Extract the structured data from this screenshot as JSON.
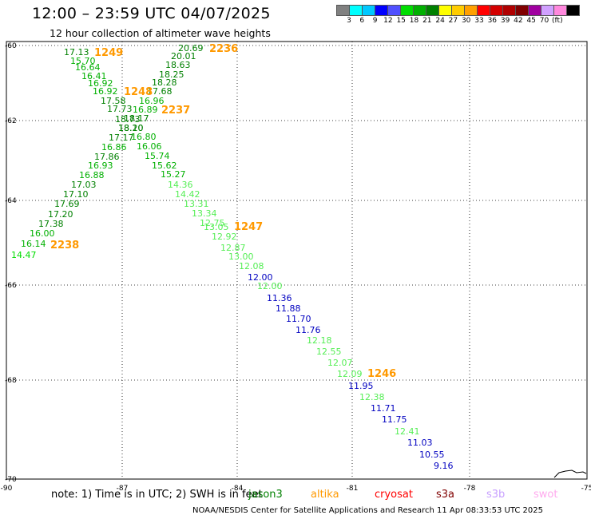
{
  "title": "12:00 – 23:59 UTC 04/07/2025",
  "subtitle": "12 hour collection of altimeter wave heights",
  "colorbar": {
    "colors": [
      "#808080",
      "#00ffff",
      "#00c8ff",
      "#0000ff",
      "#5050ff",
      "#00dd00",
      "#00b000",
      "#008000",
      "#ffff00",
      "#ffcc00",
      "#ffa000",
      "#ff0000",
      "#d40000",
      "#b00000",
      "#800000",
      "#a000a0",
      "#d0a0ff",
      "#ff88dd",
      "#000000"
    ],
    "labels": [
      "3",
      "6",
      "9",
      "12",
      "15",
      "18",
      "21",
      "24",
      "27",
      "30",
      "33",
      "36",
      "39",
      "42",
      "45",
      "70",
      "(ft)"
    ],
    "unit": "(ft)"
  },
  "axes": {
    "lon_labels": [
      "-90",
      "-87",
      "-84",
      "-81",
      "-78",
      "-75"
    ],
    "lat_labels": [
      "-60",
      "-62",
      "-64",
      "-66",
      "-68",
      "-70"
    ]
  },
  "wave_heights": [
    {
      "v": "17.13",
      "c": "#008000"
    },
    {
      "v": "15.70",
      "c": "#00b000"
    },
    {
      "v": "16.64",
      "c": "#00b000"
    },
    {
      "v": "16.41",
      "c": "#00b000"
    },
    {
      "v": "16.92",
      "c": "#00b000"
    },
    {
      "v": "16.92",
      "c": "#00b000"
    },
    {
      "v": "17.58",
      "c": "#008000"
    },
    {
      "v": "17.73",
      "c": "#008000"
    },
    {
      "v": "18.73",
      "c": "#008000"
    },
    {
      "v": "18.10",
      "c": "#008000"
    },
    {
      "v": "17.17",
      "c": "#008000"
    },
    {
      "v": "16.86",
      "c": "#00b000"
    },
    {
      "v": "17.86",
      "c": "#008000"
    },
    {
      "v": "16.93",
      "c": "#00b000"
    },
    {
      "v": "16.88",
      "c": "#00b000"
    },
    {
      "v": "17.03",
      "c": "#008000"
    },
    {
      "v": "17.10",
      "c": "#008000"
    },
    {
      "v": "17.69",
      "c": "#008000"
    },
    {
      "v": "17.20",
      "c": "#008000"
    },
    {
      "v": "17.38",
      "c": "#008000"
    },
    {
      "v": "16.00",
      "c": "#00b000"
    },
    {
      "v": "16.14",
      "c": "#00b000"
    },
    {
      "v": "14.47",
      "c": "#00dd00"
    },
    {
      "v": "20.69",
      "c": "#008000"
    },
    {
      "v": "20.01",
      "c": "#008000"
    },
    {
      "v": "18.63",
      "c": "#008000"
    },
    {
      "v": "18.25",
      "c": "#008000"
    },
    {
      "v": "18.28",
      "c": "#008000"
    },
    {
      "v": "17.68",
      "c": "#008000"
    },
    {
      "v": "16.96",
      "c": "#00b000"
    },
    {
      "v": "16.89",
      "c": "#00b000"
    },
    {
      "v": "18.17",
      "c": "#008000"
    },
    {
      "v": "18.20",
      "c": "#008000"
    },
    {
      "v": "16.80",
      "c": "#00b000"
    },
    {
      "v": "16.06",
      "c": "#00b000"
    },
    {
      "v": "15.74",
      "c": "#00b000"
    },
    {
      "v": "15.62",
      "c": "#00b000"
    },
    {
      "v": "15.27",
      "c": "#00b000"
    },
    {
      "v": "14.36",
      "c": "#55ee55"
    },
    {
      "v": "14.42",
      "c": "#55ee55"
    },
    {
      "v": "13.31",
      "c": "#55ee55"
    },
    {
      "v": "13.34",
      "c": "#55ee55"
    },
    {
      "v": "12.75",
      "c": "#55ee55"
    },
    {
      "v": "13.05",
      "c": "#55ee55"
    },
    {
      "v": "12.92",
      "c": "#55ee55"
    },
    {
      "v": "12.87",
      "c": "#55ee55"
    },
    {
      "v": "13.00",
      "c": "#55ee55"
    },
    {
      "v": "12.08",
      "c": "#55ee55"
    },
    {
      "v": "12.00",
      "c": "#0000c0"
    },
    {
      "v": "12.00",
      "c": "#55ee55"
    },
    {
      "v": "11.36",
      "c": "#0000c0"
    },
    {
      "v": "11.88",
      "c": "#0000c0"
    },
    {
      "v": "11.70",
      "c": "#0000c0"
    },
    {
      "v": "11.76",
      "c": "#0000c0"
    },
    {
      "v": "12.18",
      "c": "#55ee55"
    },
    {
      "v": "12.55",
      "c": "#55ee55"
    },
    {
      "v": "12.07",
      "c": "#55ee55"
    },
    {
      "v": "12.09",
      "c": "#55ee55"
    },
    {
      "v": "11.95",
      "c": "#0000c0"
    },
    {
      "v": "12.38",
      "c": "#55ee55"
    },
    {
      "v": "11.71",
      "c": "#0000c0"
    },
    {
      "v": "11.75",
      "c": "#0000c0"
    },
    {
      "v": "12.41",
      "c": "#55ee55"
    },
    {
      "v": "11.03",
      "c": "#0000c0"
    },
    {
      "v": "10.55",
      "c": "#0000c0"
    },
    {
      "v": "9.16",
      "c": "#0000c0"
    }
  ],
  "pass_times": [
    "1249",
    "1248",
    "2237",
    "2236",
    "1247",
    "1246",
    "2238"
  ],
  "pass_time_color": "#ff9900",
  "note": "note:  1) Time is in UTC; 2) SWH is in feet",
  "satellites": [
    {
      "name": "jason3",
      "color": "#008000"
    },
    {
      "name": "altika",
      "color": "#ff9900"
    },
    {
      "name": "cryosat",
      "color": "#ff0000"
    },
    {
      "name": "s3a",
      "color": "#800000"
    },
    {
      "name": "s3b",
      "color": "#c8a0ff"
    },
    {
      "name": "swot",
      "color": "#ffaaee"
    }
  ],
  "footer": "NOAA/NESDIS Center for Satellite Applications and Research    11 Apr 08:33:53 UTC 2025"
}
